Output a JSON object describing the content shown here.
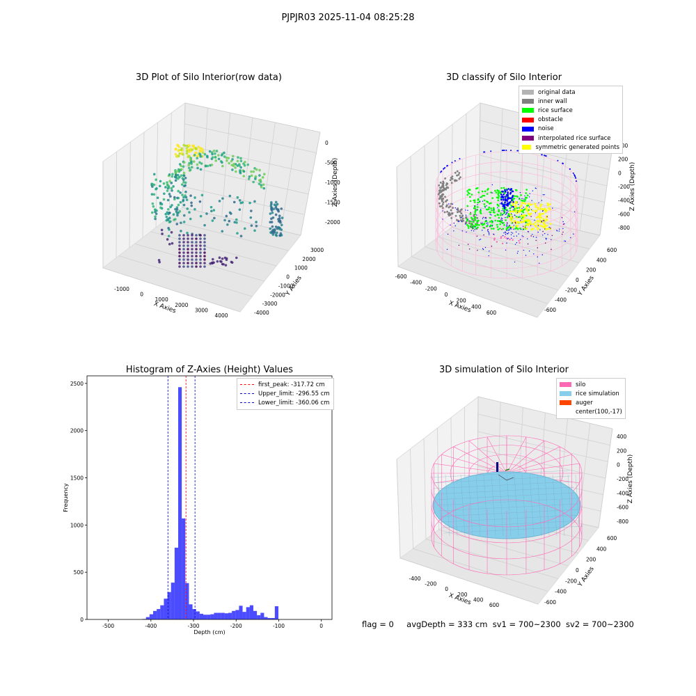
{
  "figure": {
    "suptitle": "PJPJR03 2025-11-04 08:25:28",
    "status": {
      "flag": "flag = 0",
      "avg_depth": "avgDepth = 333 cm",
      "sv1": "sv1 = 700~2300",
      "sv2": "sv2 = 700~2300"
    }
  },
  "raw_plot": {
    "title": "3D Plot of Silo Interior(row data)",
    "xlabel": "X Axies",
    "ylabel": "Y Axies",
    "zlabel": "Z Axies (Depth)",
    "xticks": [
      "-1000",
      "0",
      "1000",
      "2000",
      "3000",
      "4000"
    ],
    "yticks": [
      "-4000",
      "-3000",
      "-2000",
      "-1000",
      "0",
      "1000",
      "2000",
      "3000"
    ],
    "zticks": [
      "-2000",
      "-1500",
      "-1000",
      "-500",
      "0"
    ]
  },
  "classify_plot": {
    "title": "3D classify of Silo Interior",
    "xlabel": "X Axies",
    "ylabel": "Y Axies",
    "zlabel": "Z Axies (Depth)",
    "xticks": [
      "-600",
      "-400",
      "-200",
      "0",
      "200",
      "400",
      "600"
    ],
    "yticks": [
      "-600",
      "-400",
      "-200",
      "0",
      "200",
      "400",
      "600"
    ],
    "zticks": [
      "-800",
      "-600",
      "-400",
      "-200",
      "0",
      "200",
      "400"
    ],
    "legend": [
      {
        "label": "original data",
        "color": "#b3b3b3"
      },
      {
        "label": "inner wall",
        "color": "#808080"
      },
      {
        "label": "rice surface",
        "color": "#00ff00"
      },
      {
        "label": "obstacle",
        "color": "#ff0000"
      },
      {
        "label": "noise",
        "color": "#0000ff"
      },
      {
        "label": "interpolated rice surface",
        "color": "#800080"
      },
      {
        "label": "symmetric generated points",
        "color": "#ffff00"
      }
    ]
  },
  "simulation_plot": {
    "title": "3D simulation of Silo Interior",
    "xlabel": "X Axies",
    "ylabel": "Y Axies",
    "zlabel": "Z Axies (Depth)",
    "xticks": [
      "-400",
      "-200",
      "0",
      "200",
      "400",
      "600"
    ],
    "yticks": [
      "-600",
      "-400",
      "-200",
      "0",
      "200",
      "400",
      "600"
    ],
    "zticks": [
      "-800",
      "-600",
      "-400",
      "-200",
      "0",
      "200",
      "400"
    ],
    "legend": [
      {
        "label": "silo",
        "color": "#ff69b4"
      },
      {
        "label": "rice simulation",
        "color": "#87ceeb"
      },
      {
        "label": "auger",
        "color": "#ff4500"
      },
      {
        "label": "center(100,-17)",
        "color": ""
      }
    ]
  },
  "chart_data": {
    "type": "bar",
    "title": "Histogram of Z-Axies (Height) Values",
    "xlabel": "Depth (cm)",
    "ylabel": "Frequency",
    "xlim": [
      -550,
      25
    ],
    "ylim": [
      0,
      2580
    ],
    "xticks": [
      -500,
      -400,
      -300,
      -200,
      -100,
      0
    ],
    "yticks": [
      0,
      500,
      1000,
      1500,
      2000,
      2500
    ],
    "bar_color": "#0000ff",
    "bins_start": -420,
    "bin_width": 8.4,
    "values": [
      5,
      25,
      55,
      90,
      110,
      150,
      220,
      290,
      390,
      760,
      2460,
      1070,
      385,
      160,
      110,
      85,
      60,
      50,
      50,
      55,
      70,
      70,
      70,
      65,
      70,
      90,
      100,
      145,
      80,
      130,
      150,
      90,
      45,
      70,
      25,
      15,
      15,
      140
    ],
    "vlines": [
      {
        "label": "first_peak: -317.72 cm",
        "x": -317.72,
        "color": "#ff0000"
      },
      {
        "label": "Upper_limit: -296.55 cm",
        "x": -296.55,
        "color": "#0000cc"
      },
      {
        "label": "Lower_limit: -360.06 cm",
        "x": -360.06,
        "color": "#0000cc"
      }
    ],
    "legend_position": "top-right",
    "grid": false
  }
}
